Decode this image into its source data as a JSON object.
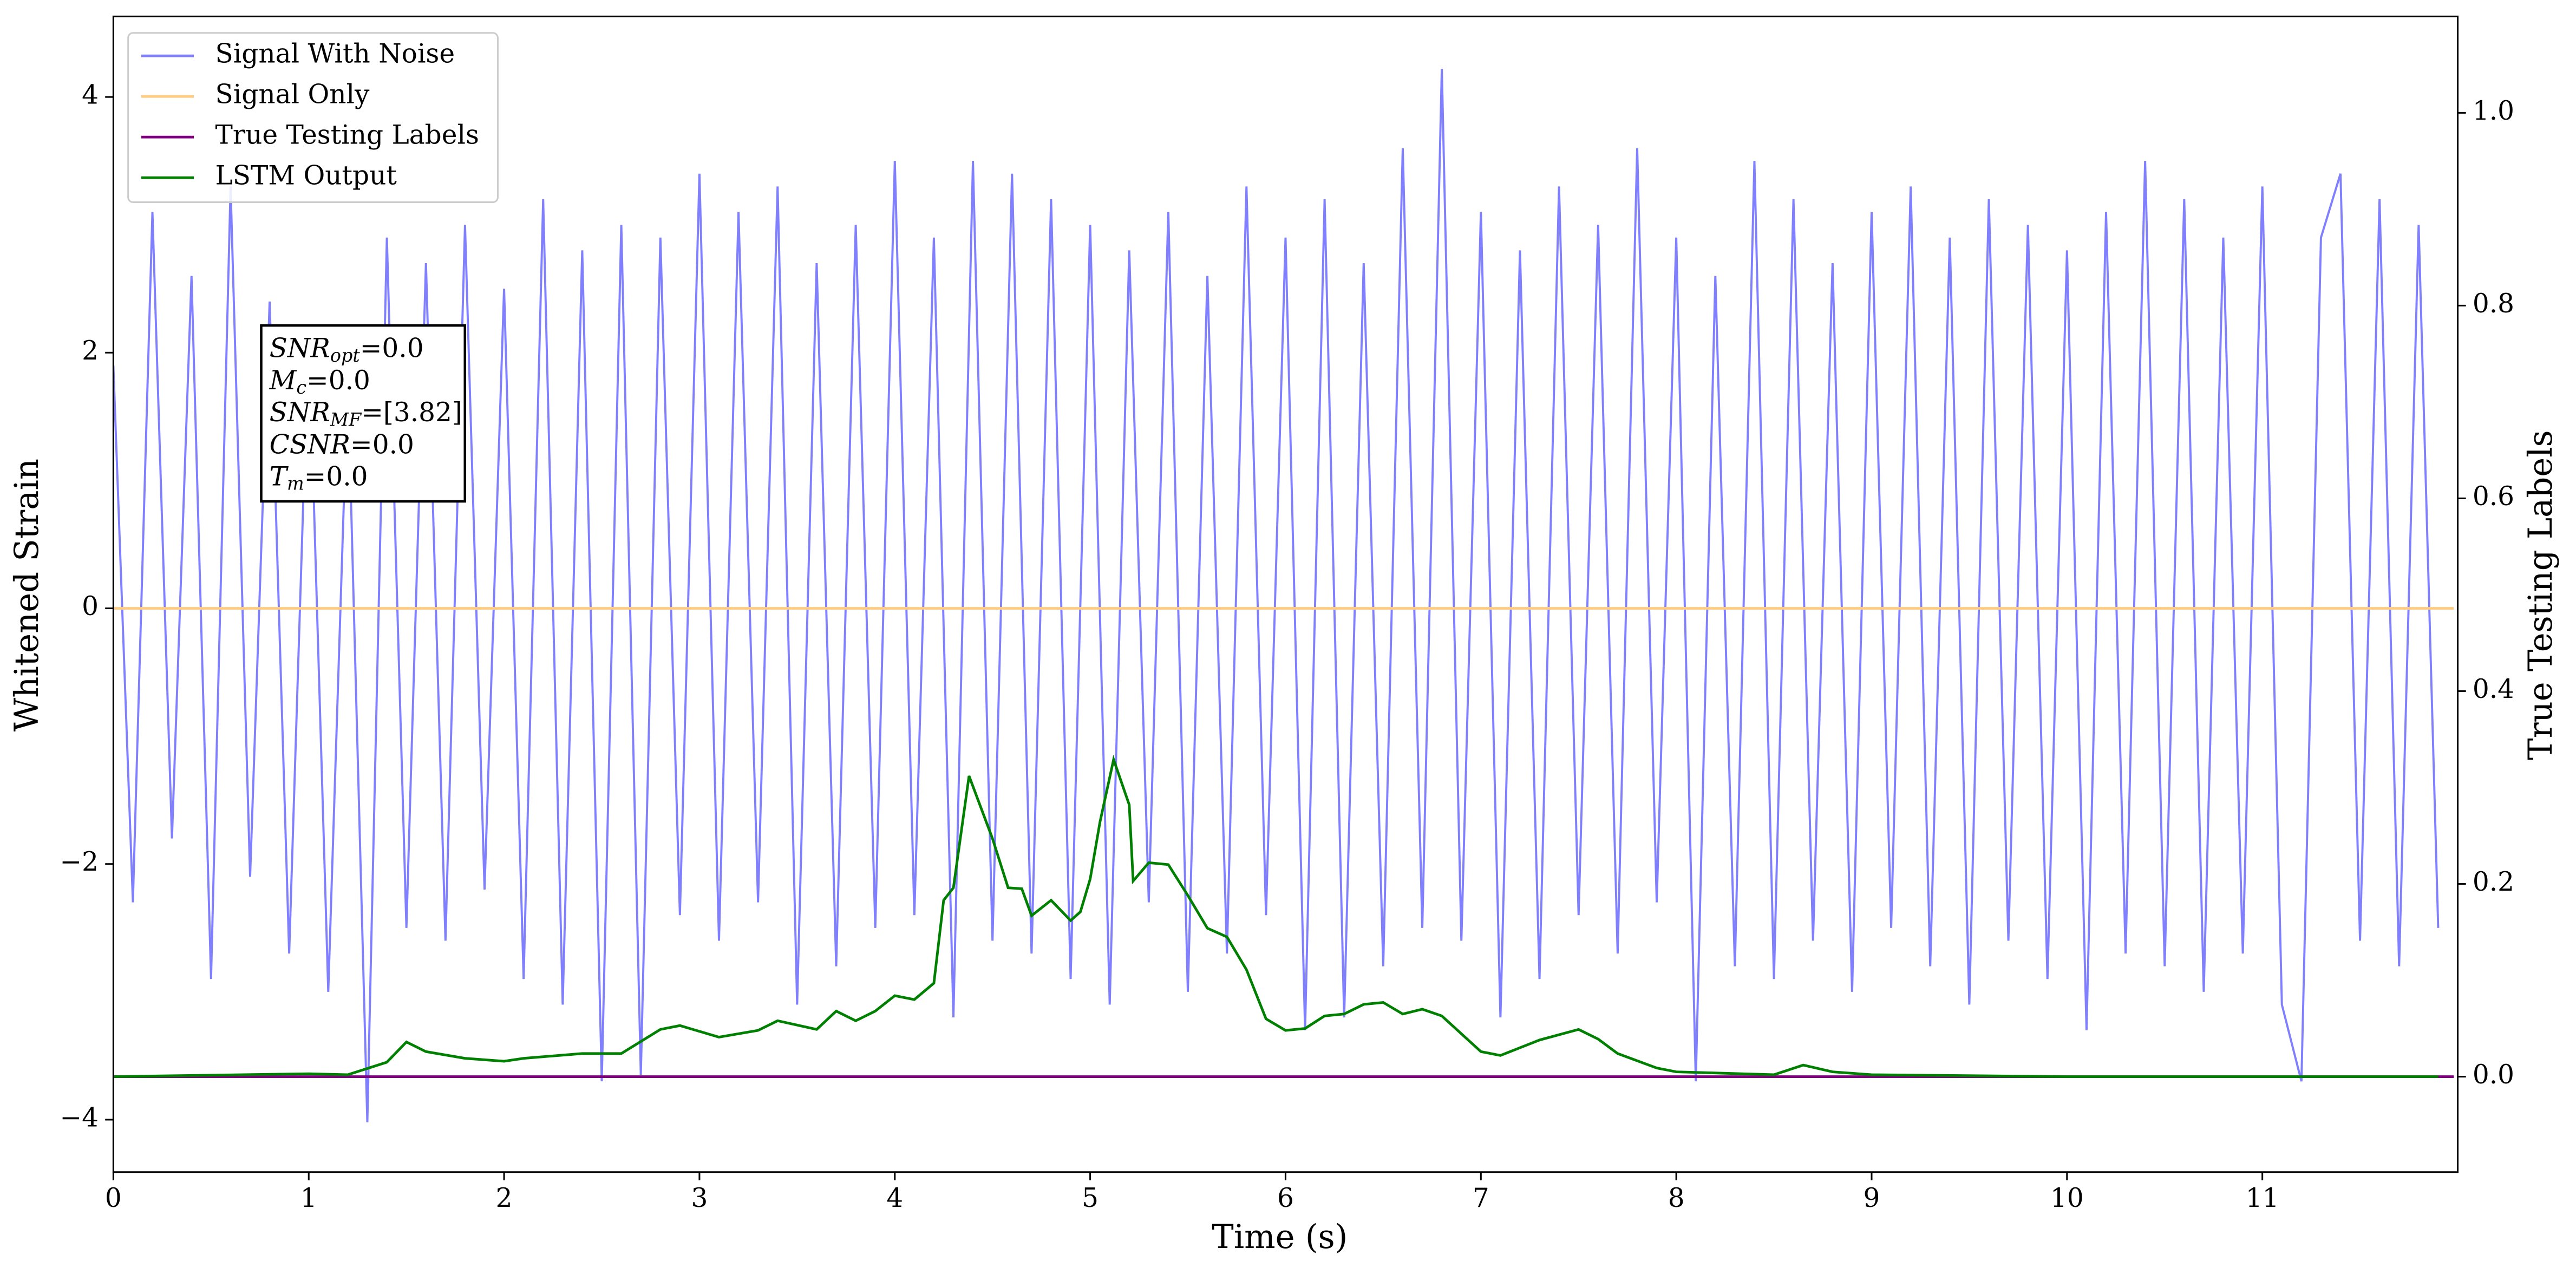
{
  "chart_data": {
    "type": "line",
    "xlabel": "Time (s)",
    "ylabel": "Whitened Strain",
    "y2label": "True Testing Labels",
    "xlim": [
      0,
      12
    ],
    "xticks": [
      0,
      1,
      2,
      3,
      4,
      5,
      6,
      7,
      8,
      9,
      10,
      11
    ],
    "ylim": [
      -4.41,
      4.63
    ],
    "yticks": [
      {
        "value": -4,
        "label": "−4"
      },
      {
        "value": -2,
        "label": "−2"
      },
      0,
      2,
      4
    ],
    "y2lim": [
      -0.099,
      1.1
    ],
    "y2ticks": [
      {
        "value": 0,
        "label": "0.0"
      },
      0.2,
      0.4,
      0.6,
      0.8,
      {
        "value": 1,
        "label": "1.0"
      }
    ],
    "legend": "upper left",
    "series": [
      {
        "name": "Signal With Noise",
        "color": "#8080ff",
        "x": [
          0.0,
          0.1,
          0.2,
          0.3,
          0.4,
          0.5,
          0.6,
          0.7,
          0.8,
          0.9,
          1.0,
          1.1,
          1.2,
          1.3,
          1.4,
          1.5,
          1.6,
          1.7,
          1.8,
          1.9,
          2.0,
          2.1,
          2.2,
          2.3,
          2.4,
          2.5,
          2.6,
          2.7,
          2.8,
          2.9,
          3.0,
          3.1,
          3.2,
          3.3,
          3.4,
          3.5,
          3.6,
          3.7,
          3.8,
          3.9,
          4.0,
          4.1,
          4.2,
          4.3,
          4.4,
          4.5,
          4.6,
          4.7,
          4.8,
          4.9,
          5.0,
          5.1,
          5.2,
          5.3,
          5.4,
          5.5,
          5.6,
          5.7,
          5.8,
          5.9,
          6.0,
          6.1,
          6.2,
          6.3,
          6.4,
          6.5,
          6.6,
          6.7,
          6.8,
          6.9,
          7.0,
          7.1,
          7.2,
          7.3,
          7.4,
          7.5,
          7.6,
          7.7,
          7.8,
          7.9,
          8.0,
          8.1,
          8.2,
          8.3,
          8.4,
          8.5,
          8.6,
          8.7,
          8.8,
          8.9,
          9.0,
          9.1,
          9.2,
          9.3,
          9.4,
          9.5,
          9.6,
          9.7,
          9.8,
          9.9,
          10.0,
          10.1,
          10.2,
          10.3,
          10.4,
          10.5,
          10.6,
          10.7,
          10.8,
          10.9,
          11.0,
          11.1,
          11.2,
          11.3,
          11.4,
          11.5,
          11.6,
          11.7,
          11.8,
          11.9
        ],
        "values": [
          1.9,
          -2.3,
          3.1,
          -1.8,
          2.6,
          -2.9,
          3.3,
          -2.1,
          2.4,
          -2.7,
          2.2,
          -3.0,
          1.8,
          -4.02,
          2.9,
          -2.5,
          2.7,
          -2.6,
          3.0,
          -2.2,
          2.5,
          -2.9,
          3.2,
          -3.1,
          2.8,
          -3.7,
          3.0,
          -3.65,
          2.9,
          -2.4,
          3.4,
          -2.6,
          3.1,
          -2.3,
          3.3,
          -3.1,
          2.7,
          -2.8,
          3.0,
          -2.5,
          3.5,
          -2.4,
          2.9,
          -3.2,
          3.5,
          -2.6,
          3.4,
          -2.7,
          3.2,
          -2.9,
          3.0,
          -3.1,
          2.8,
          -2.3,
          3.1,
          -3.0,
          2.6,
          -2.7,
          3.3,
          -2.4,
          2.9,
          -3.3,
          3.2,
          -3.2,
          2.7,
          -2.8,
          3.6,
          -2.5,
          4.22,
          -2.6,
          3.1,
          -3.2,
          2.8,
          -2.9,
          3.3,
          -2.4,
          3.0,
          -2.7,
          3.6,
          -2.3,
          2.9,
          -3.7,
          2.6,
          -2.8,
          3.5,
          -2.9,
          3.2,
          -2.6,
          2.7,
          -3.0,
          3.1,
          -2.5,
          3.3,
          -2.8,
          2.9,
          -3.1,
          3.2,
          -2.6,
          3.0,
          -2.9,
          2.8,
          -3.3,
          3.1,
          -2.7,
          3.5,
          -2.8,
          3.2,
          -3.0,
          2.9,
          -2.7,
          3.3,
          -3.1,
          -3.7,
          2.9,
          3.4,
          -2.6,
          3.2,
          -2.8,
          3.0,
          -2.5
        ]
      },
      {
        "name": "Signal Only",
        "color": "#ffcc80",
        "x": [
          0,
          11.98
        ],
        "values": [
          0,
          0
        ]
      },
      {
        "name": "True Testing Labels",
        "color": "#800080",
        "axis": "y2",
        "x": [
          0,
          11.98
        ],
        "values": [
          0,
          0
        ]
      },
      {
        "name": "LSTM Output",
        "color": "#008000",
        "axis": "y2",
        "x": [
          0,
          1.0,
          1.2,
          1.4,
          1.5,
          1.6,
          1.8,
          2.0,
          2.1,
          2.4,
          2.6,
          2.8,
          2.9,
          3.1,
          3.3,
          3.4,
          3.6,
          3.7,
          3.8,
          3.9,
          4.0,
          4.1,
          4.2,
          4.25,
          4.3,
          4.38,
          4.5,
          4.58,
          4.65,
          4.7,
          4.8,
          4.9,
          4.95,
          5.0,
          5.05,
          5.12,
          5.2,
          5.22,
          5.3,
          5.4,
          5.5,
          5.6,
          5.7,
          5.8,
          5.9,
          6.0,
          6.1,
          6.2,
          6.3,
          6.4,
          6.5,
          6.6,
          6.7,
          6.8,
          7.0,
          7.1,
          7.3,
          7.5,
          7.6,
          7.7,
          7.9,
          8.0,
          8.5,
          8.65,
          8.8,
          9.0,
          10.0,
          11.9
        ],
        "values": [
          0,
          0.003,
          0.002,
          0.015,
          0.036,
          0.026,
          0.019,
          0.016,
          0.019,
          0.024,
          0.024,
          0.049,
          0.053,
          0.041,
          0.048,
          0.058,
          0.049,
          0.068,
          0.058,
          0.068,
          0.084,
          0.08,
          0.097,
          0.183,
          0.196,
          0.312,
          0.247,
          0.196,
          0.195,
          0.167,
          0.183,
          0.162,
          0.171,
          0.205,
          0.264,
          0.329,
          0.282,
          0.203,
          0.222,
          0.22,
          0.188,
          0.154,
          0.145,
          0.111,
          0.06,
          0.048,
          0.05,
          0.063,
          0.065,
          0.075,
          0.077,
          0.065,
          0.07,
          0.063,
          0.026,
          0.022,
          0.038,
          0.049,
          0.039,
          0.024,
          0.009,
          0.005,
          0.002,
          0.012,
          0.005,
          0.002,
          0,
          0
        ]
      }
    ],
    "annotation": [
      {
        "symbol": "SNR",
        "subscript": "opt",
        "text": "=0.0"
      },
      {
        "symbol": "M",
        "subscript": "c",
        "text": "=0.0"
      },
      {
        "symbol": "SNR",
        "subscript": "MF",
        "text": "=[3.82]"
      },
      {
        "symbol": "CSNR",
        "text": "=0.0"
      },
      {
        "symbol": "T",
        "subscript": "m",
        "text": "=0.0"
      }
    ]
  }
}
